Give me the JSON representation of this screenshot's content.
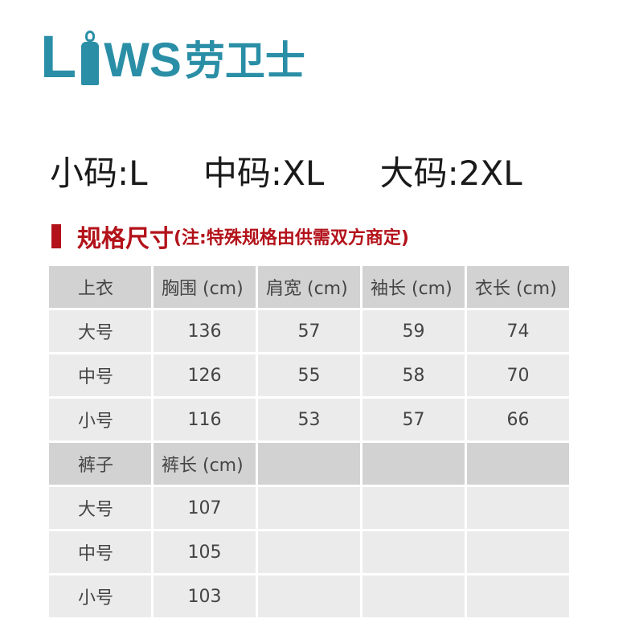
{
  "logo": {
    "latin_l": "L",
    "latin_ws": "WS",
    "chinese": "劳卫士",
    "icon": "worker-coverall-icon",
    "color": "#2a8fa6"
  },
  "sizes": [
    "小码:L",
    "中码:XL",
    "大码:2XL"
  ],
  "spec": {
    "title": "规格尺寸",
    "note": "(注:特殊规格由供需双方商定)",
    "color": "#b3121a"
  },
  "top_table": {
    "headers": [
      "上衣",
      "胸围 (cm)",
      "肩宽 (cm)",
      "袖长 (cm)",
      "衣长 (cm)"
    ],
    "rows": [
      [
        "大号",
        "136",
        "57",
        "59",
        "74"
      ],
      [
        "中号",
        "126",
        "55",
        "58",
        "70"
      ],
      [
        "小号",
        "116",
        "53",
        "57",
        "66"
      ]
    ]
  },
  "pants_table": {
    "headers": [
      "裤子",
      "裤长 (cm)",
      "",
      "",
      ""
    ],
    "rows": [
      [
        "大号",
        "107",
        "",
        "",
        ""
      ],
      [
        "中号",
        "105",
        "",
        "",
        ""
      ],
      [
        "小号",
        "103",
        "",
        "",
        ""
      ]
    ]
  }
}
